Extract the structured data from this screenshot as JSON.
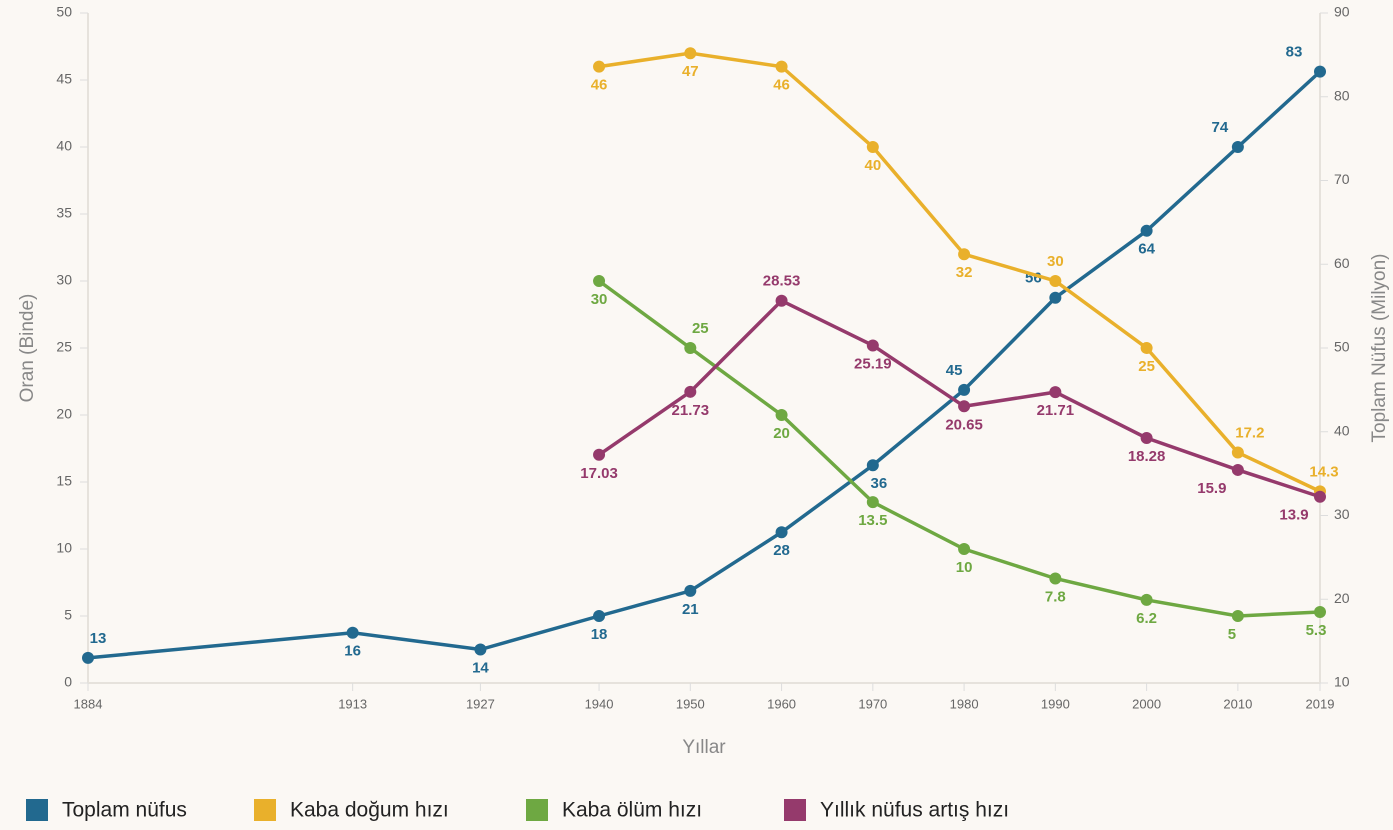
{
  "chart_data": {
    "type": "line",
    "x": [
      1884,
      1913,
      1927,
      1940,
      1950,
      1960,
      1970,
      1980,
      1990,
      2000,
      2010,
      2019
    ],
    "xlim": [
      1884,
      2019
    ],
    "xticks": [
      1884,
      1913,
      1927,
      1940,
      1950,
      1960,
      1970,
      1980,
      1990,
      2000,
      2010,
      2019
    ],
    "xlabel": "Yıllar",
    "ylabel": "Oran (Binde)",
    "y2label": "Toplam Nüfus (Milyon)",
    "ylim": [
      0,
      50
    ],
    "yticks": [
      0,
      5,
      10,
      15,
      20,
      25,
      30,
      35,
      40,
      45,
      50
    ],
    "y2lim": [
      10,
      90
    ],
    "y2ticks": [
      10,
      20,
      30,
      40,
      50,
      60,
      70,
      80,
      90
    ],
    "grid": false,
    "legend": "bottom",
    "series": [
      {
        "name": "Toplam nüfus",
        "color": "#22698f",
        "axis": "y2",
        "values": [
          13,
          16,
          14,
          18,
          21,
          28,
          36,
          45,
          56,
          64,
          74,
          83
        ]
      },
      {
        "name": "Kaba doğum hızı",
        "color": "#e9b02b",
        "values": [
          null,
          null,
          null,
          46,
          47,
          46,
          40,
          32,
          30,
          25,
          17.2,
          14.3
        ]
      },
      {
        "name": "Kaba ölüm hızı",
        "color": "#6ea842",
        "values": [
          null,
          null,
          null,
          30,
          25,
          20,
          13.5,
          10,
          7.8,
          6.2,
          5,
          5.3
        ]
      },
      {
        "name": "Yıllık nüfus artış hızı",
        "color": "#953a6c",
        "values": [
          null,
          null,
          null,
          17.03,
          21.73,
          28.53,
          25.19,
          20.65,
          21.71,
          18.28,
          15.9,
          13.9
        ]
      }
    ]
  }
}
